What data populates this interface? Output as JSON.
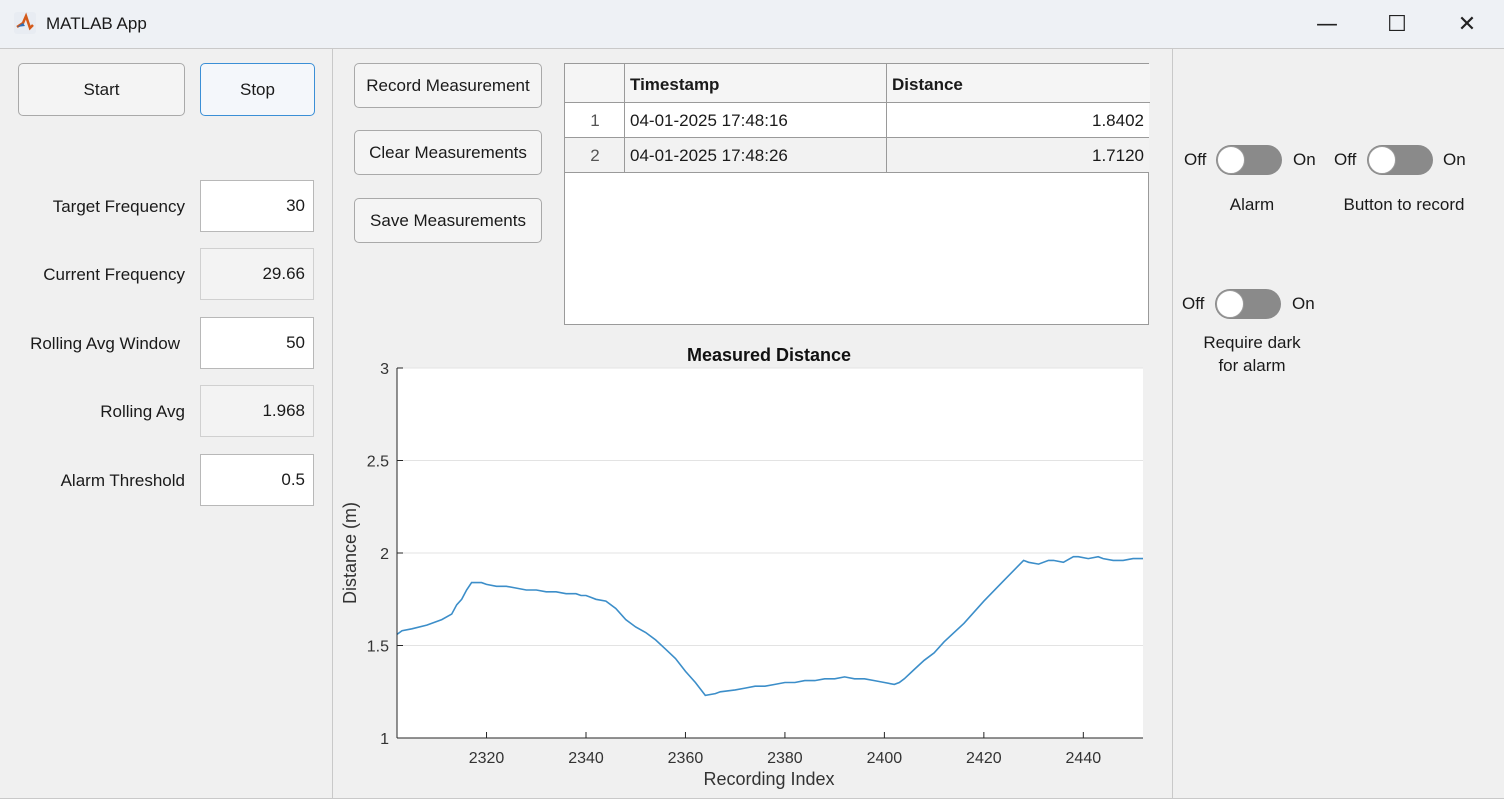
{
  "window": {
    "title": "MATLAB App",
    "minimize_glyph": "—",
    "maximize_glyph": "☐",
    "close_glyph": "✕"
  },
  "controls": {
    "start_label": "Start",
    "stop_label": "Stop",
    "fields": [
      {
        "label": "Target Frequency",
        "value": "30",
        "editable": true
      },
      {
        "label": "Current Frequency",
        "value": "29.66",
        "editable": false
      },
      {
        "label": "Rolling Avg Window",
        "value": "50",
        "editable": true
      },
      {
        "label": "Rolling Avg",
        "value": "1.968",
        "editable": false
      },
      {
        "label": "Alarm Threshold",
        "value": "0.5",
        "editable": true
      }
    ]
  },
  "measurements": {
    "record_label": "Record Measurement",
    "clear_label": "Clear Measurements",
    "save_label": "Save Measurements",
    "table": {
      "columns": [
        "",
        "Timestamp",
        "Distance"
      ],
      "rows": [
        {
          "index": "1",
          "timestamp": "04-01-2025 17:48:16",
          "distance": "1.8402"
        },
        {
          "index": "2",
          "timestamp": "04-01-2025 17:48:26",
          "distance": "1.7120"
        }
      ]
    }
  },
  "toggles": {
    "off_label": "Off",
    "on_label": "On",
    "items": [
      {
        "caption": "Alarm",
        "state": "off"
      },
      {
        "caption": "Button to record",
        "state": "off"
      },
      {
        "caption_line1": "Require dark",
        "caption_line2": "for alarm",
        "state": "off"
      }
    ]
  },
  "chart_data": {
    "type": "line",
    "title": "Measured Distance",
    "xlabel": "Recording Index",
    "ylabel": "Distance (m)",
    "xlim": [
      2302,
      2452
    ],
    "ylim": [
      1,
      3
    ],
    "xticks": [
      2320,
      2340,
      2360,
      2380,
      2400,
      2420,
      2440
    ],
    "yticks": [
      1,
      1.5,
      2,
      2.5,
      3
    ],
    "grid": "horizontal",
    "line_color": "#3c8ec9",
    "series": [
      {
        "x": [
          2302,
          2303,
          2305,
          2308,
          2311,
          2313,
          2314,
          2315,
          2316,
          2317,
          2319,
          2320,
          2322,
          2324,
          2326,
          2328,
          2330,
          2332,
          2334,
          2336,
          2338,
          2339,
          2340,
          2341,
          2342,
          2344,
          2346,
          2348,
          2350,
          2352,
          2354,
          2356,
          2358,
          2360,
          2362,
          2364,
          2366,
          2367,
          2370,
          2372,
          2374,
          2376,
          2378,
          2380,
          2382,
          2384,
          2386,
          2388,
          2390,
          2392,
          2394,
          2396,
          2398,
          2400,
          2402,
          2403,
          2404,
          2406,
          2408,
          2410,
          2412,
          2416,
          2420,
          2424,
          2428,
          2429,
          2431,
          2433,
          2434,
          2436,
          2438,
          2439,
          2441,
          2443,
          2444,
          2446,
          2448,
          2450,
          2452
        ],
        "y": [
          1.56,
          1.58,
          1.59,
          1.61,
          1.64,
          1.67,
          1.72,
          1.75,
          1.8,
          1.84,
          1.84,
          1.83,
          1.82,
          1.82,
          1.81,
          1.8,
          1.8,
          1.79,
          1.79,
          1.78,
          1.78,
          1.77,
          1.77,
          1.76,
          1.75,
          1.74,
          1.7,
          1.64,
          1.6,
          1.57,
          1.53,
          1.48,
          1.43,
          1.36,
          1.3,
          1.23,
          1.24,
          1.25,
          1.26,
          1.27,
          1.28,
          1.28,
          1.29,
          1.3,
          1.3,
          1.31,
          1.31,
          1.32,
          1.32,
          1.33,
          1.32,
          1.32,
          1.31,
          1.3,
          1.29,
          1.3,
          1.32,
          1.37,
          1.42,
          1.46,
          1.52,
          1.62,
          1.74,
          1.85,
          1.96,
          1.95,
          1.94,
          1.96,
          1.96,
          1.95,
          1.98,
          1.98,
          1.97,
          1.98,
          1.97,
          1.96,
          1.96,
          1.97,
          1.97
        ]
      }
    ]
  }
}
